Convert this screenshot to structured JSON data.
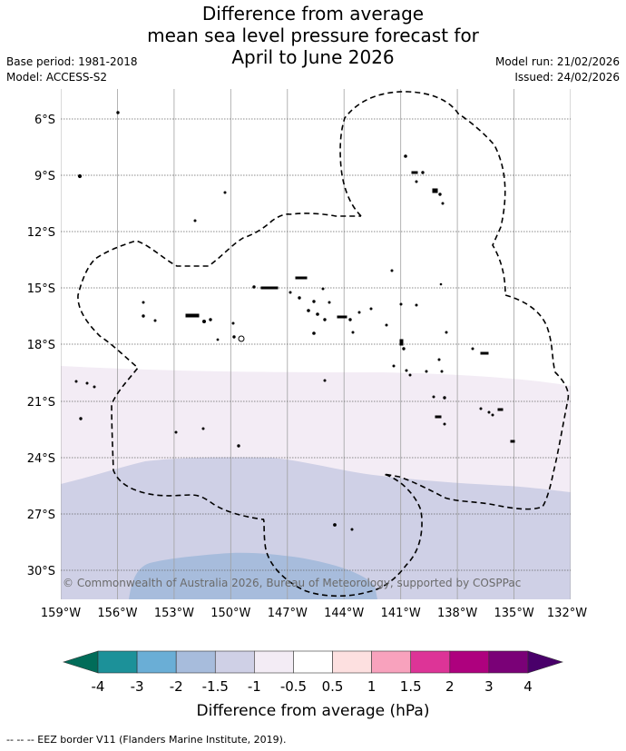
{
  "title": {
    "line1": "Difference from average",
    "line2": "mean sea level pressure forecast for",
    "line3": "April to June 2026"
  },
  "info_left": {
    "base_period": "Base period: 1981-2018",
    "model": "Model: ACCESS-S2"
  },
  "info_right": {
    "model_run": "Model run: 21/02/2026",
    "issued": "Issued: 24/02/2026"
  },
  "map": {
    "lat_labels": [
      "6°S",
      "9°S",
      "12°S",
      "15°S",
      "18°S",
      "21°S",
      "24°S",
      "27°S",
      "30°S"
    ],
    "lon_labels": [
      "159°W",
      "156°W",
      "153°W",
      "150°W",
      "147°W",
      "144°W",
      "141°W",
      "138°W",
      "135°W",
      "132°W"
    ],
    "copyright": "© Commonwealth of Australia 2026, Bureau of Meteorology, supported by COSPPac",
    "anomaly_bands": [
      {
        "range": "-1 to -0.5",
        "color": "#f3ecf5"
      },
      {
        "range": "-1.5 to -1",
        "color": "#cfd0e6"
      },
      {
        "range": "-2 to -1.5",
        "color": "#a7bcdc"
      }
    ]
  },
  "colorbar": {
    "label": "Difference from average (hPa)",
    "ticks": [
      "-4",
      "-3",
      "-2",
      "-1.5",
      "-1",
      "-0.5",
      "0.5",
      "1",
      "1.5",
      "2",
      "3",
      "4"
    ],
    "colors": [
      "#1c9199",
      "#6aaed6",
      "#a7bcdc",
      "#cfd0e6",
      "#f3ecf5",
      "#ffffff",
      "#fde0e0",
      "#f8a2bd",
      "#dd3497",
      "#ae017e",
      "#7a0177"
    ],
    "low_extend_color": "#016c59",
    "high_extend_color": "#49006a"
  },
  "footer": "-- -- -- EEZ border V11 (Flanders Marine Institute, 2019)."
}
